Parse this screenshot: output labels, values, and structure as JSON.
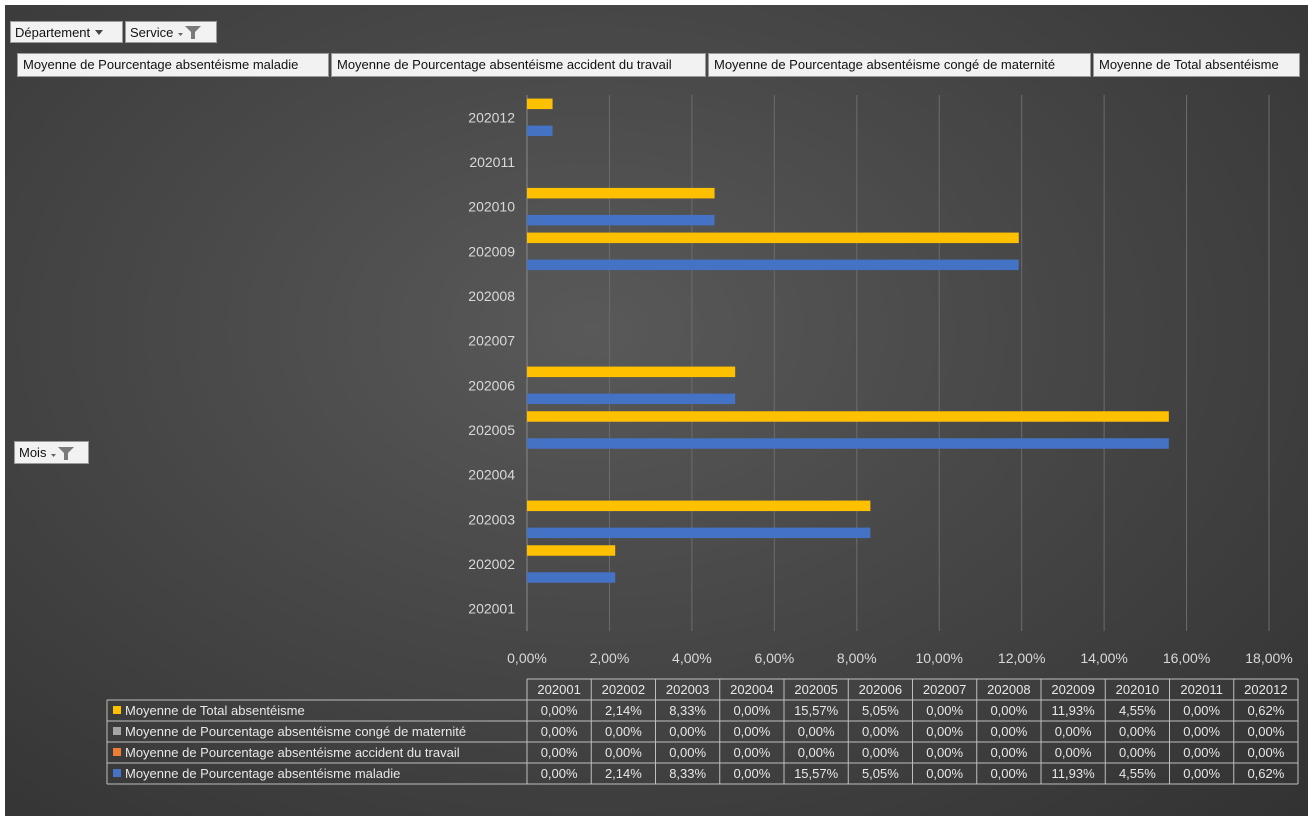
{
  "filters": {
    "departement_label": "Département",
    "service_label": "Service",
    "mois_label": "Mois"
  },
  "value_fields": [
    "Moyenne de Pourcentage absentéisme maladie",
    "Moyenne de Pourcentage absentéisme accident du travail",
    "Moyenne de Pourcentage absentéisme congé de maternité",
    "Moyenne de Total absentéisme"
  ],
  "chart_data": {
    "type": "bar",
    "orientation": "horizontal",
    "categories": [
      "202001",
      "202002",
      "202003",
      "202004",
      "202005",
      "202006",
      "202007",
      "202008",
      "202009",
      "202010",
      "202011",
      "202012"
    ],
    "xlim": [
      0,
      18
    ],
    "xticks": [
      "0,00%",
      "2,00%",
      "4,00%",
      "6,00%",
      "8,00%",
      "10,00%",
      "12,00%",
      "14,00%",
      "16,00%",
      "18,00%"
    ],
    "grid": true,
    "series": [
      {
        "name": "Moyenne de Total absentéisme",
        "color": "#ffc000",
        "values": [
          0,
          2.14,
          8.33,
          0,
          15.57,
          5.05,
          0,
          0,
          11.93,
          4.55,
          0,
          0.62
        ],
        "labels": [
          "0,00%",
          "2,14%",
          "8,33%",
          "0,00%",
          "15,57%",
          "5,05%",
          "0,00%",
          "0,00%",
          "11,93%",
          "4,55%",
          "0,00%",
          "0,62%"
        ]
      },
      {
        "name": "Moyenne de Pourcentage absentéisme congé de maternité",
        "color": "#a5a5a5",
        "values": [
          0,
          0,
          0,
          0,
          0,
          0,
          0,
          0,
          0,
          0,
          0,
          0
        ],
        "labels": [
          "0,00%",
          "0,00%",
          "0,00%",
          "0,00%",
          "0,00%",
          "0,00%",
          "0,00%",
          "0,00%",
          "0,00%",
          "0,00%",
          "0,00%",
          "0,00%"
        ]
      },
      {
        "name": "Moyenne de Pourcentage absentéisme accident du travail",
        "color": "#ed7d31",
        "values": [
          0,
          0,
          0,
          0,
          0,
          0,
          0,
          0,
          0,
          0,
          0,
          0
        ],
        "labels": [
          "0,00%",
          "0,00%",
          "0,00%",
          "0,00%",
          "0,00%",
          "0,00%",
          "0,00%",
          "0,00%",
          "0,00%",
          "0,00%",
          "0,00%",
          "0,00%"
        ]
      },
      {
        "name": "Moyenne de Pourcentage absentéisme maladie",
        "color": "#4472c4",
        "values": [
          0,
          2.14,
          8.33,
          0,
          15.57,
          5.05,
          0,
          0,
          11.93,
          4.55,
          0,
          0.62
        ],
        "labels": [
          "0,00%",
          "2,14%",
          "8,33%",
          "0,00%",
          "15,57%",
          "5,05%",
          "0,00%",
          "0,00%",
          "11,93%",
          "4,55%",
          "0,00%",
          "0,62%"
        ]
      }
    ]
  }
}
